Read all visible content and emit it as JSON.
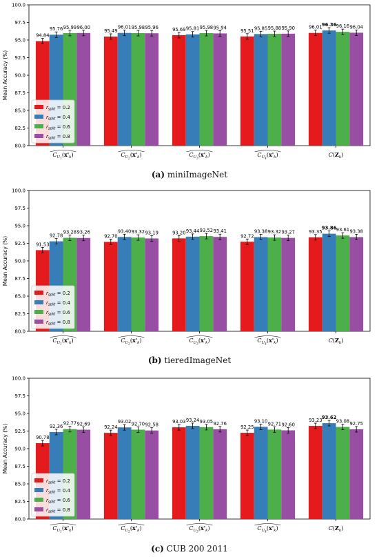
{
  "legend": {
    "entries": [
      "r_split = 0.2",
      "r_split = 0.4",
      "r_split = 0.6",
      "r_split = 0.8"
    ],
    "symbol": "r",
    "subscript": "split",
    "values": [
      "= 0.2",
      "= 0.4",
      "= 0.6",
      "= 0.8"
    ]
  },
  "colors": [
    "#e41a1c",
    "#377eb8",
    "#4daf4a",
    "#984ea3"
  ],
  "panels": [
    {
      "caption_letter": "(a)",
      "caption_text": "miniImageNet"
    },
    {
      "caption_letter": "(b)",
      "caption_text": "tieredImageNet"
    },
    {
      "caption_letter": "(c)",
      "caption_text": "CUB 200 2011"
    }
  ],
  "chart_data": [
    {
      "type": "bar",
      "ylabel": "Mean Accuracy (%)",
      "ylim": [
        80,
        100
      ],
      "yticks": [
        "80.0",
        "82.5",
        "85.0",
        "87.5",
        "90.0",
        "92.5",
        "95.0",
        "97.5",
        "100.0"
      ],
      "categories": [
        "C_U1(x'_k)",
        "C_U2(x'_k)",
        "C_U3(x'_k)",
        "C_U4(x'_k)",
        "C(Z_k)"
      ],
      "series": [
        {
          "name": "r_split = 0.2",
          "values": [
            94.84,
            95.49,
            95.69,
            95.51,
            96.01
          ],
          "labels": [
            "94.84",
            "95.49",
            "95.69",
            "95.51",
            "96.01"
          ]
        },
        {
          "name": "r_split = 0.4",
          "values": [
            95.76,
            96.01,
            95.81,
            95.85,
            96.36
          ],
          "labels": [
            "95.76",
            "96.01",
            "95.81",
            "95.85",
            "96.36"
          ]
        },
        {
          "name": "r_split = 0.6",
          "values": [
            95.99,
            95.98,
            95.98,
            95.88,
            96.16
          ],
          "labels": [
            "95.99",
            "95.98",
            "95.98",
            "95.88",
            "96.16"
          ]
        },
        {
          "name": "r_split = 0.8",
          "values": [
            96.0,
            95.96,
            95.94,
            95.9,
            96.04
          ],
          "labels": [
            "96.00",
            "95.96",
            "95.94",
            "95.90",
            "96.04"
          ]
        }
      ],
      "bold_label": {
        "series": 1,
        "category": 4
      },
      "legend_position": "lower-left"
    },
    {
      "type": "bar",
      "ylabel": "Mean Accuracy (%)",
      "ylim": [
        80,
        100
      ],
      "yticks": [
        "80.0",
        "82.5",
        "85.0",
        "87.5",
        "90.0",
        "92.5",
        "95.0",
        "97.5",
        "100.0"
      ],
      "categories": [
        "C_U1(x'_k)",
        "C_U2(x'_k)",
        "C_U3(x'_k)",
        "C_U4(x'_k)",
        "C(Z_k)"
      ],
      "series": [
        {
          "name": "r_split = 0.2",
          "values": [
            91.53,
            92.7,
            93.2,
            92.72,
            93.35
          ],
          "labels": [
            "91.53",
            "92.70",
            "93.20",
            "92.72",
            "93.35"
          ]
        },
        {
          "name": "r_split = 0.4",
          "values": [
            92.78,
            93.4,
            93.44,
            93.38,
            93.86
          ],
          "labels": [
            "92.78",
            "93.40",
            "93.44",
            "93.38",
            "93.86"
          ]
        },
        {
          "name": "r_split = 0.6",
          "values": [
            93.28,
            93.32,
            93.52,
            93.32,
            93.61
          ],
          "labels": [
            "93.28",
            "93.32",
            "93.52",
            "93.32",
            "93.61"
          ]
        },
        {
          "name": "r_split = 0.8",
          "values": [
            93.26,
            93.19,
            93.41,
            93.27,
            93.38
          ],
          "labels": [
            "93.26",
            "93.19",
            "93.41",
            "93.27",
            "93.38"
          ]
        }
      ],
      "bold_label": {
        "series": 1,
        "category": 4
      },
      "legend_position": "lower-left"
    },
    {
      "type": "bar",
      "ylabel": "Mean Accuracy (%)",
      "ylim": [
        80,
        100
      ],
      "yticks": [
        "80.0",
        "82.5",
        "85.0",
        "87.5",
        "90.0",
        "92.5",
        "95.0",
        "97.5",
        "100.0"
      ],
      "categories": [
        "C_U1(x'_k)",
        "C_U2(x'_k)",
        "C_U3(x'_k)",
        "C_U4(x'_k)",
        "C(Z_k)"
      ],
      "series": [
        {
          "name": "r_split = 0.2",
          "values": [
            90.78,
            92.24,
            93.03,
            92.25,
            93.23
          ],
          "labels": [
            "90.78",
            "92.24",
            "93.03",
            "92.25",
            "93.23"
          ]
        },
        {
          "name": "r_split = 0.4",
          "values": [
            92.36,
            93.02,
            93.24,
            93.1,
            93.62
          ],
          "labels": [
            "92.36",
            "93.02",
            "93.24",
            "93.10",
            "93.62"
          ]
        },
        {
          "name": "r_split = 0.6",
          "values": [
            92.77,
            92.7,
            93.05,
            92.71,
            93.08
          ],
          "labels": [
            "92.77",
            "92.70",
            "93.05",
            "92.71",
            "93.08"
          ]
        },
        {
          "name": "r_split = 0.8",
          "values": [
            92.69,
            92.58,
            92.76,
            92.6,
            92.75
          ],
          "labels": [
            "92.69",
            "92.58",
            "92.76",
            "92.60",
            "92.75"
          ]
        }
      ],
      "bold_label": {
        "series": 1,
        "category": 4
      },
      "legend_position": "lower-left"
    }
  ]
}
